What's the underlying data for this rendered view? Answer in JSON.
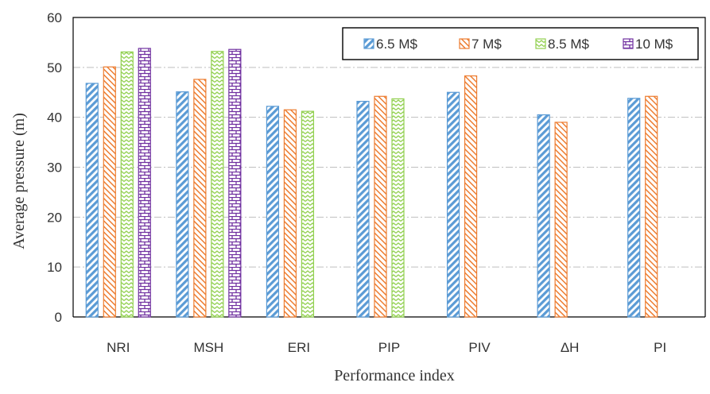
{
  "chart_data": {
    "type": "bar",
    "title": "",
    "xlabel": "Performance index",
    "ylabel": "Average pressure (m)",
    "ylim": [
      0,
      60
    ],
    "yticks": [
      0,
      10,
      20,
      30,
      40,
      50,
      60
    ],
    "grid": "horizontal dash-dot",
    "legend_position": "top-right",
    "categories": [
      "NRI",
      "MSH",
      "ERI",
      "PIP",
      "PIV",
      "ΔH",
      "PI"
    ],
    "series": [
      {
        "name": "6.5 M$",
        "color": "#5b9bd5",
        "pattern": "diagonal-stripes",
        "values": [
          46.8,
          45.1,
          42.2,
          43.2,
          45.0,
          40.5,
          43.8
        ]
      },
      {
        "name": "7 M$",
        "color": "#ed7d31",
        "pattern": "diagonal-stripes",
        "values": [
          50.1,
          47.6,
          41.5,
          44.2,
          48.3,
          39.0,
          44.2
        ]
      },
      {
        "name": "8.5 M$",
        "color": "#92d050",
        "pattern": "zigzag",
        "values": [
          53.1,
          53.2,
          41.2,
          43.7,
          null,
          null,
          null
        ]
      },
      {
        "name": "10 M$",
        "color": "#7030a0",
        "pattern": "brick",
        "values": [
          53.8,
          53.6,
          null,
          null,
          null,
          null,
          null
        ]
      }
    ]
  }
}
